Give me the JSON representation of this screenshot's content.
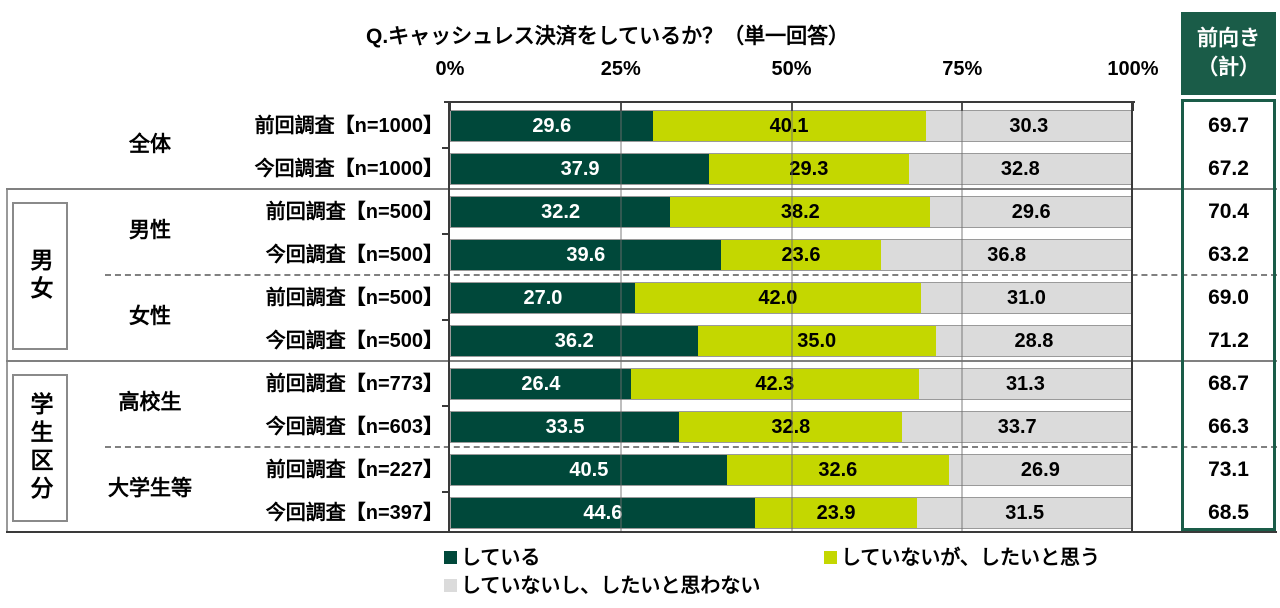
{
  "title": "Q.キャッシュレス決済をしているか？（単一回答）",
  "axis_ticks": [
    "0%",
    "25%",
    "50%",
    "75%",
    "100%"
  ],
  "summary": {
    "header_line1": "前向き",
    "header_line2": "（計）"
  },
  "legend": {
    "items": [
      {
        "label": "している",
        "color": "#00483a"
      },
      {
        "label": "していないが、したいと思う",
        "color": "#c4d700"
      },
      {
        "label": "していないし、したいと思わない",
        "color": "#dbdbdb"
      }
    ]
  },
  "colors": {
    "bar_dark_green": "#00483a",
    "bar_yellow_green": "#c4d700",
    "bar_gray": "#dbdbdb",
    "summary_green": "#1a5c48"
  },
  "chart_data": {
    "type": "bar",
    "stacked": true,
    "orientation": "horizontal",
    "title": "Q.キャッシュレス決済をしているか？（単一回答）",
    "xlim": [
      0,
      100
    ],
    "x_tick_labels": [
      "0%",
      "25%",
      "50%",
      "75%",
      "100%"
    ],
    "grid": true,
    "legend_position": "bottom",
    "series_names": [
      "している",
      "していないが、したいと思う",
      "していないし、したいと思わない"
    ],
    "summary_column_header": "前向き（計）",
    "sections": [
      {
        "side_label": "",
        "categories": [
          {
            "name": "全体",
            "rows": [
              {
                "label": "前回調査【n=1000】",
                "values": [
                  29.6,
                  40.1,
                  30.3
                ],
                "positive_total": 69.7
              },
              {
                "label": "今回調査【n=1000】",
                "values": [
                  37.9,
                  29.3,
                  32.8
                ],
                "positive_total": 67.2
              }
            ]
          }
        ]
      },
      {
        "side_label": "男女",
        "categories": [
          {
            "name": "男性",
            "rows": [
              {
                "label": "前回調査【n=500】",
                "values": [
                  32.2,
                  38.2,
                  29.6
                ],
                "positive_total": 70.4
              },
              {
                "label": "今回調査【n=500】",
                "values": [
                  39.6,
                  23.6,
                  36.8
                ],
                "positive_total": 63.2
              }
            ]
          },
          {
            "name": "女性",
            "rows": [
              {
                "label": "前回調査【n=500】",
                "values": [
                  27.0,
                  42.0,
                  31.0
                ],
                "positive_total": 69.0
              },
              {
                "label": "今回調査【n=500】",
                "values": [
                  36.2,
                  35.0,
                  28.8
                ],
                "positive_total": 71.2
              }
            ]
          }
        ]
      },
      {
        "side_label": "学生区分",
        "categories": [
          {
            "name": "高校生",
            "rows": [
              {
                "label": "前回調査【n=773】",
                "values": [
                  26.4,
                  42.3,
                  31.3
                ],
                "positive_total": 68.7
              },
              {
                "label": "今回調査【n=603】",
                "values": [
                  33.5,
                  32.8,
                  33.7
                ],
                "positive_total": 66.3
              }
            ]
          },
          {
            "name": "大学生等",
            "rows": [
              {
                "label": "前回調査【n=227】",
                "values": [
                  40.5,
                  32.6,
                  26.9
                ],
                "positive_total": 73.1
              },
              {
                "label": "今回調査【n=397】",
                "values": [
                  44.6,
                  23.9,
                  31.5
                ],
                "positive_total": 68.5
              }
            ]
          }
        ]
      }
    ]
  }
}
